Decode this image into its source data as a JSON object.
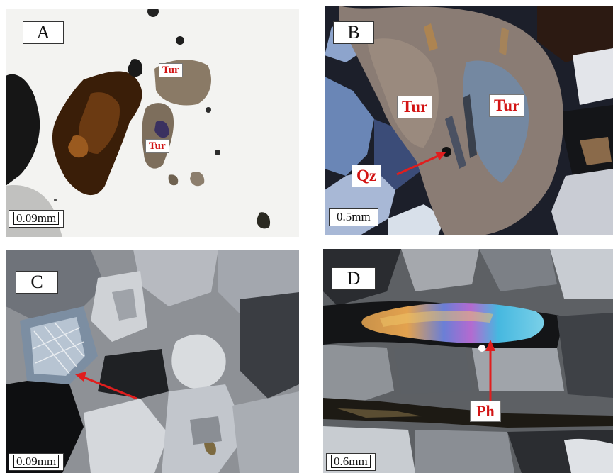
{
  "panels": [
    {
      "letter": "A",
      "scale": "0.09mm",
      "minerals": [
        "Tur",
        "Tur"
      ]
    },
    {
      "letter": "B",
      "scale": "0.5mm",
      "minerals": [
        "Tur",
        "Tur",
        "Qz"
      ]
    },
    {
      "letter": "C",
      "scale": "0.09mm",
      "minerals": []
    },
    {
      "letter": "D",
      "scale": "0.6mm",
      "minerals": [
        "Ph"
      ]
    }
  ],
  "colors": {
    "label_text": "#d21414",
    "arrow": "#e01e1e"
  }
}
